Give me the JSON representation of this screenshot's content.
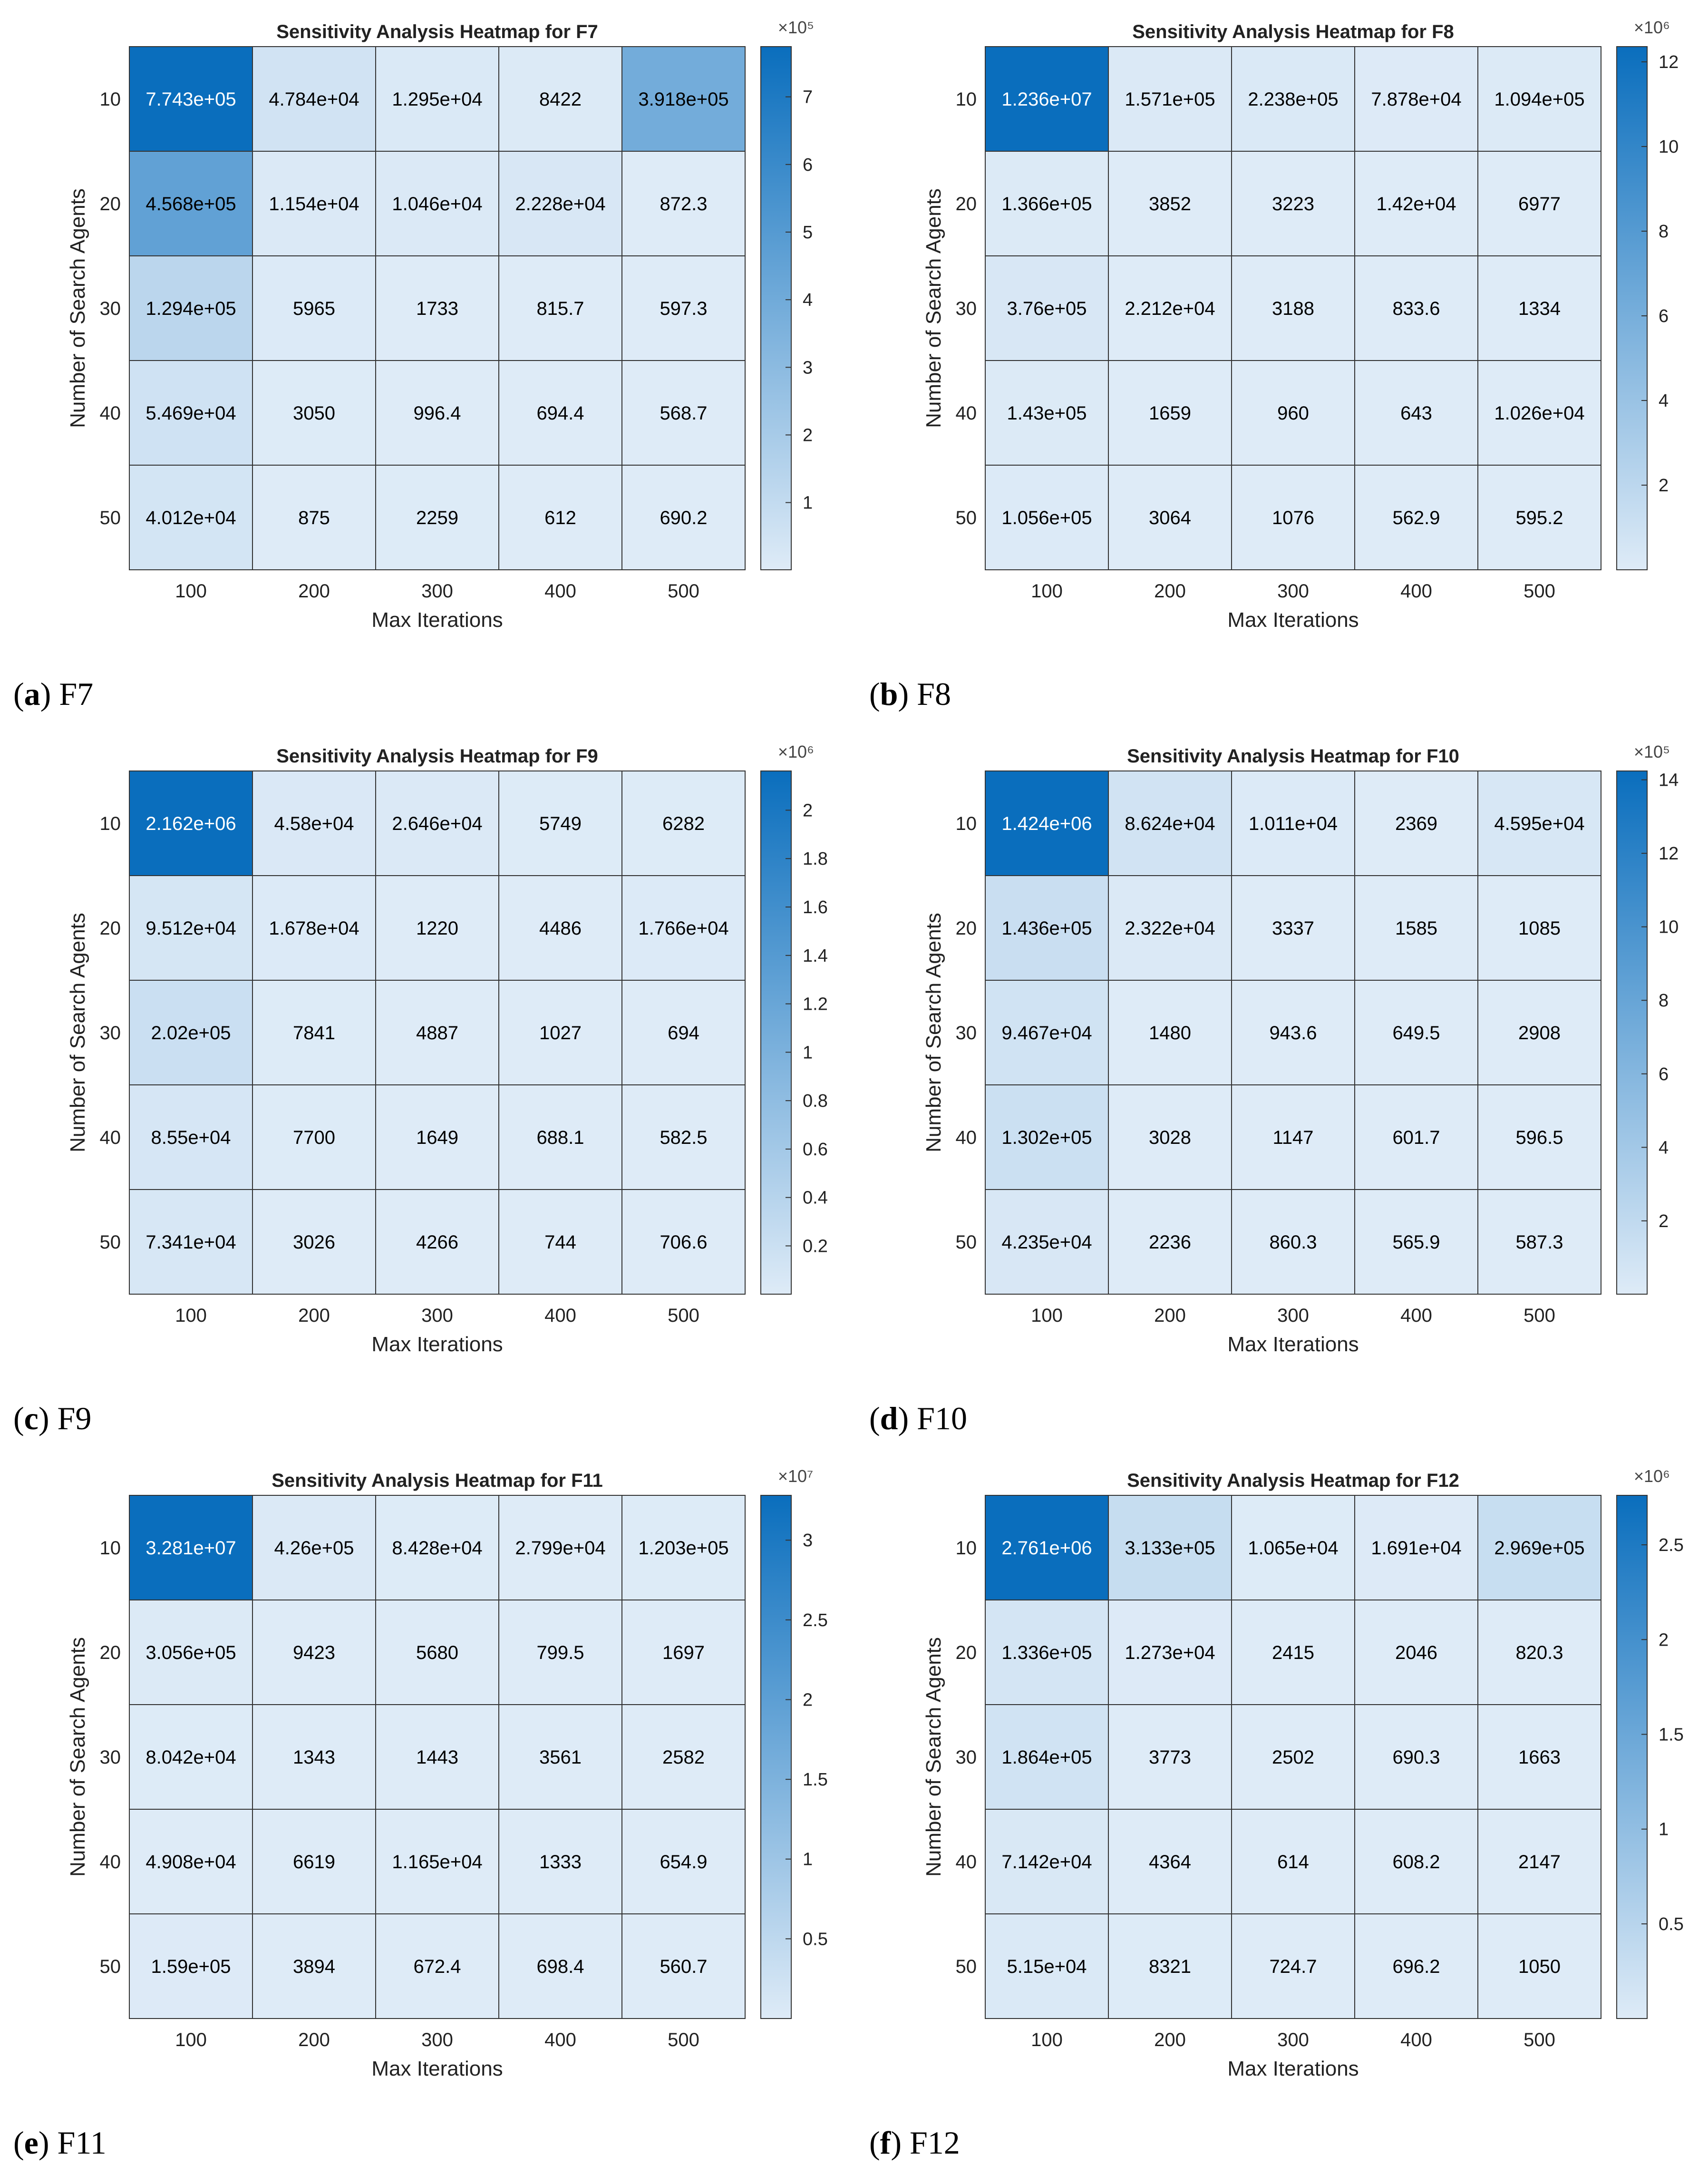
{
  "chart_data": [
    {
      "type": "heatmap",
      "title": "Sensitivity Analysis Heatmap for F7",
      "xlabel": "Max Iterations",
      "ylabel": "Number of Search Agents",
      "x": [
        "100",
        "200",
        "300",
        "400",
        "500"
      ],
      "y": [
        "10",
        "20",
        "30",
        "40",
        "50"
      ],
      "values": [
        [
          774300,
          47840,
          12950,
          8422,
          391800
        ],
        [
          456800,
          11540,
          10460,
          22280,
          872.3
        ],
        [
          129400,
          5965,
          1733,
          815.7,
          597.3
        ],
        [
          54690,
          3050,
          996.4,
          694.4,
          568.7
        ],
        [
          40120,
          875,
          2259,
          612,
          690.2
        ]
      ],
      "labels": [
        [
          "7.743e+05",
          "4.784e+04",
          "1.295e+04",
          "8422",
          "3.918e+05"
        ],
        [
          "4.568e+05",
          "1.154e+04",
          "1.046e+04",
          "2.228e+04",
          "872.3"
        ],
        [
          "1.294e+05",
          "5965",
          "1733",
          "815.7",
          "597.3"
        ],
        [
          "5.469e+04",
          "3050",
          "996.4",
          "694.4",
          "568.7"
        ],
        [
          "4.012e+04",
          "875",
          "2259",
          "612",
          "690.2"
        ]
      ],
      "colorbar_exponent_text": "×10⁵",
      "colorbar_scale": 100000,
      "colorbar_ticks": [
        "1",
        "2",
        "3",
        "4",
        "5",
        "6",
        "7"
      ],
      "colorbar_tick_values": [
        1,
        2,
        3,
        4,
        5,
        6,
        7
      ],
      "caption_letter": "a",
      "caption_text": "F7"
    },
    {
      "type": "heatmap",
      "title": "Sensitivity Analysis Heatmap for F8",
      "xlabel": "Max Iterations",
      "ylabel": "Number of Search Agents",
      "x": [
        "100",
        "200",
        "300",
        "400",
        "500"
      ],
      "y": [
        "10",
        "20",
        "30",
        "40",
        "50"
      ],
      "values": [
        [
          12360000,
          157100,
          223800,
          78780,
          109400
        ],
        [
          136600,
          3852,
          3223,
          14200,
          6977
        ],
        [
          376000,
          22120,
          3188,
          833.6,
          1334
        ],
        [
          143000,
          1659,
          960,
          643,
          10260
        ],
        [
          105600,
          3064,
          1076,
          562.9,
          595.2
        ]
      ],
      "labels": [
        [
          "1.236e+07",
          "1.571e+05",
          "2.238e+05",
          "7.878e+04",
          "1.094e+05"
        ],
        [
          "1.366e+05",
          "3852",
          "3223",
          "1.42e+04",
          "6977"
        ],
        [
          "3.76e+05",
          "2.212e+04",
          "3188",
          "833.6",
          "1334"
        ],
        [
          "1.43e+05",
          "1659",
          "960",
          "643",
          "1.026e+04"
        ],
        [
          "1.056e+05",
          "3064",
          "1076",
          "562.9",
          "595.2"
        ]
      ],
      "colorbar_exponent_text": "×10⁶",
      "colorbar_scale": 1000000,
      "colorbar_ticks": [
        "2",
        "4",
        "6",
        "8",
        "10",
        "12"
      ],
      "colorbar_tick_values": [
        2,
        4,
        6,
        8,
        10,
        12
      ],
      "caption_letter": "b",
      "caption_text": "F8"
    },
    {
      "type": "heatmap",
      "title": "Sensitivity Analysis Heatmap for F9",
      "xlabel": "Max Iterations",
      "ylabel": "Number of Search Agents",
      "x": [
        "100",
        "200",
        "300",
        "400",
        "500"
      ],
      "y": [
        "10",
        "20",
        "30",
        "40",
        "50"
      ],
      "values": [
        [
          2162000,
          45800,
          26460,
          5749,
          6282
        ],
        [
          95120,
          16780,
          1220,
          4486,
          17660
        ],
        [
          202000,
          7841,
          4887,
          1027,
          694
        ],
        [
          85500,
          7700,
          1649,
          688.1,
          582.5
        ],
        [
          73410,
          3026,
          4266,
          744,
          706.6
        ]
      ],
      "labels": [
        [
          "2.162e+06",
          "4.58e+04",
          "2.646e+04",
          "5749",
          "6282"
        ],
        [
          "9.512e+04",
          "1.678e+04",
          "1220",
          "4486",
          "1.766e+04"
        ],
        [
          "2.02e+05",
          "7841",
          "4887",
          "1027",
          "694"
        ],
        [
          "8.55e+04",
          "7700",
          "1649",
          "688.1",
          "582.5"
        ],
        [
          "7.341e+04",
          "3026",
          "4266",
          "744",
          "706.6"
        ]
      ],
      "colorbar_exponent_text": "×10⁶",
      "colorbar_scale": 1000000,
      "colorbar_ticks": [
        "0.2",
        "0.4",
        "0.6",
        "0.8",
        "1",
        "1.2",
        "1.4",
        "1.6",
        "1.8",
        "2"
      ],
      "colorbar_tick_values": [
        0.2,
        0.4,
        0.6,
        0.8,
        1,
        1.2,
        1.4,
        1.6,
        1.8,
        2
      ],
      "caption_letter": "c",
      "caption_text": "F9"
    },
    {
      "type": "heatmap",
      "title": "Sensitivity Analysis Heatmap for F10",
      "xlabel": "Max Iterations",
      "ylabel": "Number of Search Agents",
      "x": [
        "100",
        "200",
        "300",
        "400",
        "500"
      ],
      "y": [
        "10",
        "20",
        "30",
        "40",
        "50"
      ],
      "values": [
        [
          1424000,
          86240,
          10110,
          2369,
          45950
        ],
        [
          143600,
          23220,
          3337,
          1585,
          1085
        ],
        [
          94670,
          1480,
          943.6,
          649.5,
          2908
        ],
        [
          130200,
          3028,
          1147,
          601.7,
          596.5
        ],
        [
          42350,
          2236,
          860.3,
          565.9,
          587.3
        ]
      ],
      "labels": [
        [
          "1.424e+06",
          "8.624e+04",
          "1.011e+04",
          "2369",
          "4.595e+04"
        ],
        [
          "1.436e+05",
          "2.322e+04",
          "3337",
          "1585",
          "1085"
        ],
        [
          "9.467e+04",
          "1480",
          "943.6",
          "649.5",
          "2908"
        ],
        [
          "1.302e+05",
          "3028",
          "1147",
          "601.7",
          "596.5"
        ],
        [
          "4.235e+04",
          "2236",
          "860.3",
          "565.9",
          "587.3"
        ]
      ],
      "colorbar_exponent_text": "×10⁵",
      "colorbar_scale": 100000,
      "colorbar_ticks": [
        "2",
        "4",
        "6",
        "8",
        "10",
        "12",
        "14"
      ],
      "colorbar_tick_values": [
        2,
        4,
        6,
        8,
        10,
        12,
        14
      ],
      "caption_letter": "d",
      "caption_text": "F10"
    },
    {
      "type": "heatmap",
      "title": "Sensitivity Analysis Heatmap for F11",
      "xlabel": "Max Iterations",
      "ylabel": "Number of Search Agents",
      "x": [
        "100",
        "200",
        "300",
        "400",
        "500"
      ],
      "y": [
        "10",
        "20",
        "30",
        "40",
        "50"
      ],
      "values": [
        [
          32810000,
          426000,
          84280,
          27990,
          120300
        ],
        [
          305600,
          9423,
          5680,
          799.5,
          1697
        ],
        [
          80420,
          1343,
          1443,
          3561,
          2582
        ],
        [
          49080,
          6619,
          11650,
          1333,
          654.9
        ],
        [
          159000,
          3894,
          672.4,
          698.4,
          560.7
        ]
      ],
      "labels": [
        [
          "3.281e+07",
          "4.26e+05",
          "8.428e+04",
          "2.799e+04",
          "1.203e+05"
        ],
        [
          "3.056e+05",
          "9423",
          "5680",
          "799.5",
          "1697"
        ],
        [
          "8.042e+04",
          "1343",
          "1443",
          "3561",
          "2582"
        ],
        [
          "4.908e+04",
          "6619",
          "1.165e+04",
          "1333",
          "654.9"
        ],
        [
          "1.59e+05",
          "3894",
          "672.4",
          "698.4",
          "560.7"
        ]
      ],
      "colorbar_exponent_text": "×10⁷",
      "colorbar_scale": 10000000,
      "colorbar_ticks": [
        "0.5",
        "1",
        "1.5",
        "2",
        "2.5",
        "3"
      ],
      "colorbar_tick_values": [
        0.5,
        1,
        1.5,
        2,
        2.5,
        3
      ],
      "caption_letter": "e",
      "caption_text": "F11"
    },
    {
      "type": "heatmap",
      "title": "Sensitivity Analysis Heatmap for F12",
      "xlabel": "Max Iterations",
      "ylabel": "Number of Search Agents",
      "x": [
        "100",
        "200",
        "300",
        "400",
        "500"
      ],
      "y": [
        "10",
        "20",
        "30",
        "40",
        "50"
      ],
      "values": [
        [
          2761000,
          313300,
          10650,
          16910,
          296900
        ],
        [
          133600,
          12730,
          2415,
          2046,
          820.3
        ],
        [
          186400,
          3773,
          2502,
          690.3,
          1663
        ],
        [
          71420,
          4364,
          614,
          608.2,
          2147
        ],
        [
          51500,
          8321,
          724.7,
          696.2,
          1050
        ]
      ],
      "labels": [
        [
          "2.761e+06",
          "3.133e+05",
          "1.065e+04",
          "1.691e+04",
          "2.969e+05"
        ],
        [
          "1.336e+05",
          "1.273e+04",
          "2415",
          "2046",
          "820.3"
        ],
        [
          "1.864e+05",
          "3773",
          "2502",
          "690.3",
          "1663"
        ],
        [
          "7.142e+04",
          "4364",
          "614",
          "608.2",
          "2147"
        ],
        [
          "5.15e+04",
          "8321",
          "724.7",
          "696.2",
          "1050"
        ]
      ],
      "colorbar_exponent_text": "×10⁶",
      "colorbar_scale": 1000000,
      "colorbar_ticks": [
        "0.5",
        "1",
        "1.5",
        "2",
        "2.5"
      ],
      "colorbar_tick_values": [
        0.5,
        1,
        1.5,
        2,
        2.5
      ],
      "caption_letter": "f",
      "caption_text": "F12"
    }
  ],
  "colors": {
    "low": "#deebf7",
    "high": "#0a6ebd",
    "grid": "#333333",
    "text": "#000000",
    "text_on_dark": "#ffffff"
  }
}
